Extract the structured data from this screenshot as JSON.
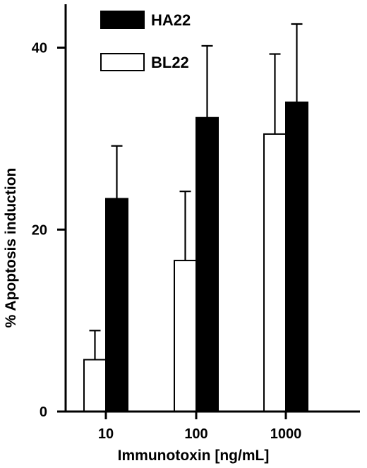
{
  "chart_data": {
    "type": "bar",
    "categories": [
      "10",
      "100",
      "1000"
    ],
    "series": [
      {
        "name": "BL22",
        "fill": "#ffffff",
        "values": [
          5.7,
          16.6,
          30.5
        ],
        "errors": [
          3.2,
          7.6,
          8.8
        ]
      },
      {
        "name": "HA22",
        "fill": "#000000",
        "values": [
          23.4,
          32.3,
          34.0
        ],
        "errors": [
          5.8,
          7.9,
          8.6
        ]
      }
    ],
    "title": "",
    "xlabel": "Immunotoxin [ng/mL]",
    "ylabel": "% Apoptosis induction",
    "ylim": [
      0,
      45
    ],
    "yticks": [
      0,
      20,
      40
    ],
    "grid": false,
    "legend_position": "top-left",
    "legend_order": [
      "HA22",
      "BL22"
    ],
    "error_bars": "upper",
    "colors": {
      "axis": "#000000",
      "bar_outline": "#000000"
    }
  }
}
